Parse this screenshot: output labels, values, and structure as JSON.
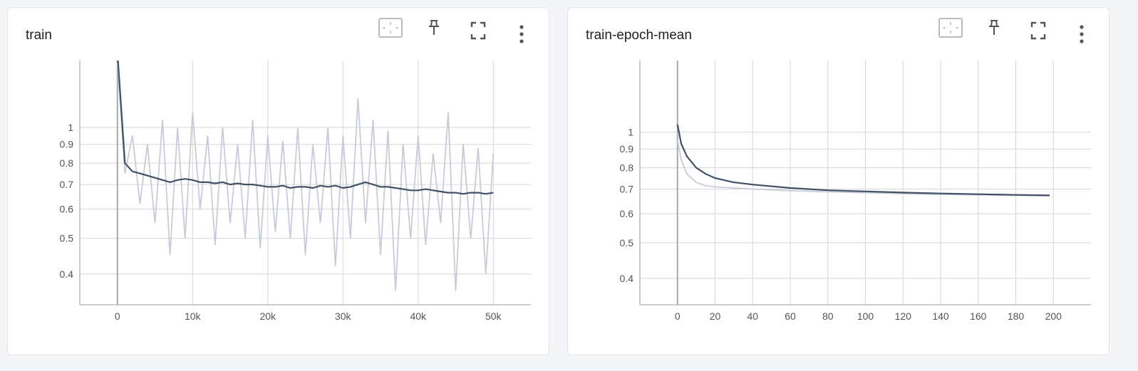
{
  "charts": [
    {
      "title": "train",
      "chart_data": {
        "type": "line",
        "yscale": "log",
        "grid": true,
        "x": [
          0,
          1000,
          2000,
          3000,
          4000,
          5000,
          6000,
          7000,
          8000,
          9000,
          10000,
          11000,
          12000,
          13000,
          14000,
          15000,
          16000,
          17000,
          18000,
          19000,
          20000,
          21000,
          22000,
          23000,
          24000,
          25000,
          26000,
          27000,
          28000,
          29000,
          30000,
          31000,
          32000,
          33000,
          34000,
          35000,
          36000,
          37000,
          38000,
          39000,
          40000,
          41000,
          42000,
          43000,
          44000,
          45000,
          46000,
          47000,
          48000,
          49000,
          50000
        ],
        "series": [
          {
            "color": "#c6ccd8",
            "values": [
              1.5,
              0.75,
              0.95,
              0.62,
              0.9,
              0.55,
              1.05,
              0.45,
              1.0,
              0.5,
              1.1,
              0.6,
              0.95,
              0.48,
              1.0,
              0.55,
              0.9,
              0.5,
              1.05,
              0.47,
              0.95,
              0.52,
              0.92,
              0.5,
              1.0,
              0.45,
              0.9,
              0.55,
              1.0,
              0.42,
              0.95,
              0.5,
              1.2,
              0.55,
              1.05,
              0.45,
              0.98,
              0.36,
              0.9,
              0.5,
              0.95,
              0.48,
              0.85,
              0.55,
              1.1,
              0.36,
              0.9,
              0.5,
              0.88,
              0.4,
              0.85
            ]
          },
          {
            "color": "#425066",
            "values": [
              1.6,
              0.8,
              0.76,
              0.75,
              0.74,
              0.73,
              0.72,
              0.71,
              0.72,
              0.725,
              0.72,
              0.71,
              0.71,
              0.705,
              0.71,
              0.7,
              0.705,
              0.7,
              0.7,
              0.695,
              0.69,
              0.69,
              0.695,
              0.685,
              0.69,
              0.69,
              0.685,
              0.695,
              0.69,
              0.695,
              0.685,
              0.69,
              0.7,
              0.71,
              0.7,
              0.69,
              0.69,
              0.685,
              0.68,
              0.675,
              0.675,
              0.68,
              0.675,
              0.67,
              0.665,
              0.665,
              0.66,
              0.665,
              0.665,
              0.66,
              0.665
            ]
          }
        ],
        "xlim": [
          -5000,
          55000
        ],
        "xticks": [
          0,
          {
            "value": 10000,
            "label": "10k"
          },
          {
            "value": 20000,
            "label": "20k"
          },
          {
            "value": 30000,
            "label": "30k"
          },
          {
            "value": 40000,
            "label": "40k"
          },
          {
            "value": 50000,
            "label": "50k"
          }
        ],
        "ylim": [
          0.33,
          1.52
        ],
        "yticks": [
          0.4,
          0.5,
          0.6,
          0.7,
          0.8,
          0.9,
          1
        ]
      }
    },
    {
      "title": "train-epoch-mean",
      "chart_data": {
        "type": "line",
        "yscale": "log",
        "grid": true,
        "x": [
          0,
          2,
          5,
          10,
          15,
          20,
          30,
          40,
          60,
          80,
          100,
          120,
          140,
          160,
          180,
          198
        ],
        "series": [
          {
            "color": "#c6ccd8",
            "values": [
              0.95,
              0.84,
              0.77,
              0.73,
              0.715,
              0.71,
              0.705,
              0.7,
              0.693,
              0.688,
              0.684,
              0.68,
              0.677,
              0.675,
              0.673,
              0.671
            ]
          },
          {
            "color": "#425066",
            "values": [
              1.05,
              0.93,
              0.86,
              0.8,
              0.77,
              0.75,
              0.73,
              0.72,
              0.705,
              0.695,
              0.69,
              0.685,
              0.681,
              0.678,
              0.675,
              0.673
            ]
          }
        ],
        "xlim": [
          -20,
          220
        ],
        "xticks": [
          0,
          20,
          40,
          60,
          80,
          100,
          120,
          140,
          160,
          180,
          200
        ],
        "ylim": [
          0.339,
          1.567
        ],
        "yticks": [
          0.4,
          0.5,
          0.6,
          0.7,
          0.8,
          0.9,
          1
        ]
      }
    }
  ]
}
